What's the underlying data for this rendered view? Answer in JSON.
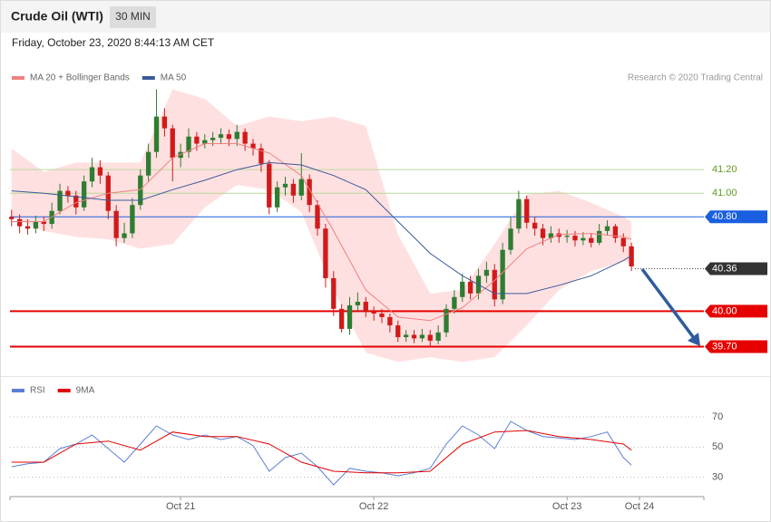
{
  "header": {
    "title": "Crude Oil (WTI)",
    "timeframe": "30 MIN",
    "datetime": "Friday, October 23, 2020 8:44:13 AM CET",
    "copyright": "Research © 2020 Trading Central"
  },
  "chart_data": [
    {
      "type": "candlestick",
      "xlim": [
        -21.2,
        65
      ],
      "ylim": [
        39.45,
        42.1
      ],
      "up_color": "#2e7d32",
      "down_color": "#d11a1a",
      "x": [
        -21,
        -20,
        -19,
        -18,
        -17,
        -16,
        -15,
        -14,
        -13,
        -12,
        -11,
        -10,
        -9,
        -8,
        -7,
        -6,
        -5,
        -4,
        -3,
        -2,
        -1,
        0,
        1,
        2,
        3,
        4,
        5,
        6,
        7,
        8,
        9,
        10,
        11,
        12,
        13,
        14,
        15,
        16,
        17,
        18,
        19,
        20,
        21,
        22,
        23,
        24,
        25,
        26,
        27,
        28,
        29,
        30,
        31,
        32,
        33,
        34,
        35,
        36,
        37,
        38,
        39,
        40,
        41,
        42,
        43,
        44,
        45,
        46,
        47,
        48,
        49,
        50,
        51,
        52,
        53,
        54,
        55,
        56
      ],
      "open": [
        40.8,
        40.78,
        40.72,
        40.7,
        40.76,
        40.74,
        40.85,
        41.02,
        40.98,
        40.88,
        41.1,
        41.22,
        41.15,
        40.85,
        40.62,
        40.66,
        40.9,
        41.15,
        41.35,
        41.65,
        41.55,
        41.3,
        41.35,
        41.48,
        41.42,
        41.45,
        41.47,
        41.5,
        41.46,
        41.52,
        41.42,
        41.38,
        41.25,
        40.88,
        41.05,
        41.08,
        40.98,
        41.12,
        40.9,
        40.7,
        40.28,
        40.02,
        39.85,
        40.05,
        40.08,
        40.0,
        39.98,
        39.95,
        39.88,
        39.78,
        39.8,
        39.77,
        39.8,
        39.75,
        39.82,
        40.02,
        40.12,
        40.25,
        40.15,
        40.3,
        40.35,
        40.1,
        40.52,
        40.7,
        40.95,
        40.75,
        40.7,
        40.62,
        40.66,
        40.63,
        40.64,
        40.6,
        40.62,
        40.58,
        40.68,
        40.72,
        40.62,
        40.55
      ],
      "high": [
        40.86,
        40.82,
        40.78,
        40.81,
        40.8,
        40.92,
        41.08,
        41.06,
        41.02,
        41.15,
        41.3,
        41.28,
        41.18,
        40.9,
        40.75,
        40.96,
        41.2,
        41.42,
        41.88,
        41.72,
        41.58,
        41.42,
        41.55,
        41.52,
        41.5,
        41.52,
        41.55,
        41.54,
        41.58,
        41.55,
        41.46,
        41.42,
        41.28,
        41.1,
        41.14,
        41.12,
        41.34,
        41.16,
        40.94,
        40.74,
        40.34,
        40.06,
        40.12,
        40.16,
        40.12,
        40.04,
        40.02,
        39.98,
        39.92,
        39.84,
        39.84,
        39.85,
        39.84,
        39.88,
        40.06,
        40.18,
        40.32,
        40.3,
        40.36,
        40.42,
        40.4,
        40.58,
        40.8,
        41.02,
        40.98,
        40.8,
        40.74,
        40.72,
        40.7,
        40.69,
        40.68,
        40.67,
        40.66,
        40.74,
        40.77,
        40.74,
        40.66,
        40.58
      ],
      "low": [
        40.72,
        40.66,
        40.65,
        40.66,
        40.68,
        40.7,
        40.82,
        40.92,
        40.82,
        40.85,
        41.05,
        41.08,
        40.78,
        40.55,
        40.58,
        40.62,
        40.86,
        41.1,
        41.3,
        41.48,
        41.1,
        41.22,
        41.3,
        41.36,
        41.38,
        41.4,
        41.42,
        41.4,
        41.4,
        41.36,
        41.32,
        41.18,
        40.82,
        40.84,
        40.98,
        40.92,
        40.94,
        40.84,
        40.64,
        40.2,
        39.96,
        39.82,
        39.8,
        40.0,
        39.95,
        39.92,
        39.9,
        39.82,
        39.74,
        39.74,
        39.73,
        39.74,
        39.7,
        39.72,
        39.78,
        39.98,
        40.08,
        40.1,
        40.1,
        40.24,
        40.04,
        40.06,
        40.48,
        40.66,
        40.7,
        40.64,
        40.56,
        40.58,
        40.58,
        40.58,
        40.55,
        40.56,
        40.54,
        40.56,
        40.64,
        40.58,
        40.5,
        40.34
      ],
      "close": [
        40.78,
        40.72,
        40.7,
        40.76,
        40.74,
        40.85,
        41.02,
        40.98,
        40.88,
        41.1,
        41.22,
        41.15,
        40.85,
        40.62,
        40.66,
        40.9,
        41.15,
        41.35,
        41.65,
        41.55,
        41.3,
        41.35,
        41.48,
        41.42,
        41.45,
        41.47,
        41.5,
        41.46,
        41.52,
        41.42,
        41.38,
        41.25,
        40.88,
        41.05,
        41.08,
        40.98,
        41.12,
        40.9,
        40.7,
        40.28,
        40.02,
        39.85,
        40.05,
        40.08,
        40.0,
        39.98,
        39.95,
        39.88,
        39.78,
        39.8,
        39.77,
        39.8,
        39.75,
        39.82,
        40.02,
        40.12,
        40.25,
        40.15,
        40.3,
        40.35,
        40.1,
        40.52,
        40.7,
        40.95,
        40.75,
        40.7,
        40.62,
        40.66,
        40.63,
        40.64,
        40.6,
        40.62,
        40.58,
        40.68,
        40.72,
        40.62,
        40.55,
        40.38
      ],
      "series": [
        {
          "name": "MA 20 + Bollinger Bands",
          "color": "#f08080",
          "band_color": "#ffe0e0",
          "x": [
            -21,
            -17,
            -13,
            -9,
            -5,
            -1,
            3,
            7,
            11,
            15,
            19,
            23,
            27,
            31,
            35,
            39,
            43,
            47,
            51,
            55,
            56
          ],
          "values": [
            40.76,
            40.76,
            40.92,
            41.0,
            41.03,
            41.3,
            41.42,
            41.42,
            41.34,
            41.15,
            40.68,
            40.18,
            39.95,
            39.92,
            40.03,
            40.26,
            40.53,
            40.65,
            40.66,
            40.63,
            40.61
          ],
          "upper": [
            41.38,
            41.18,
            41.26,
            41.26,
            41.26,
            41.88,
            41.8,
            41.57,
            41.65,
            41.61,
            41.65,
            41.57,
            40.65,
            40.15,
            40.18,
            40.57,
            40.99,
            41.02,
            40.92,
            40.8,
            40.76
          ],
          "lower": [
            40.8,
            40.68,
            40.63,
            40.61,
            40.53,
            40.57,
            40.88,
            41.07,
            41.03,
            40.84,
            40.18,
            39.65,
            39.57,
            39.61,
            39.57,
            39.61,
            39.88,
            40.18,
            40.34,
            40.42,
            40.42
          ]
        },
        {
          "name": "MA 50",
          "color": "#3a5a9a",
          "x": [
            -21,
            -17,
            -13,
            -9,
            -5,
            -1,
            3,
            7,
            11,
            15,
            19,
            23,
            27,
            31,
            35,
            39,
            43,
            47,
            51,
            55,
            56
          ],
          "values": [
            41.02,
            41.0,
            40.97,
            40.94,
            40.94,
            41.03,
            41.11,
            41.2,
            41.26,
            41.24,
            41.15,
            41.03,
            40.76,
            40.49,
            40.3,
            40.15,
            40.15,
            40.22,
            40.3,
            40.43,
            40.47
          ]
        }
      ],
      "levels": [
        {
          "value": 41.2,
          "label": "41.20",
          "color": "#b6d99b",
          "text_color": "#5e9a1e",
          "style": "thin"
        },
        {
          "value": 41.0,
          "label": "41.00",
          "color": "#b6d99b",
          "text_color": "#5e9a1e",
          "style": "thin"
        },
        {
          "value": 40.8,
          "label": "40.80",
          "color": "#1a5fe0",
          "style": "tag"
        },
        {
          "value": 40.36,
          "label": "40.36",
          "color": "#333333",
          "style": "current"
        },
        {
          "value": 40.0,
          "label": "40.00",
          "color": "#e60000",
          "style": "thick"
        },
        {
          "value": 39.7,
          "label": "39.70",
          "color": "#e60000",
          "style": "thick"
        }
      ]
    },
    {
      "type": "line",
      "xlim": [
        -21.2,
        65
      ],
      "ylim": [
        19,
        79
      ],
      "yticks": [
        30,
        50,
        70
      ],
      "grid": true,
      "xticks": [
        {
          "value": 0,
          "label": "Oct 21"
        },
        {
          "value": 24,
          "label": "Oct 22"
        },
        {
          "value": 48,
          "label": "Oct 23"
        },
        {
          "value": 57,
          "label": "Oct 24"
        }
      ],
      "series": [
        {
          "name": "RSI",
          "color": "#5b7fd6",
          "x": [
            -21,
            -19,
            -17,
            -15,
            -13,
            -11,
            -9,
            -7,
            -5,
            -3,
            -1,
            1,
            3,
            5,
            7,
            9,
            11,
            13,
            15,
            17,
            19,
            21,
            23,
            25,
            27,
            29,
            31,
            33,
            35,
            37,
            39,
            41,
            43,
            45,
            47,
            49,
            51,
            53,
            55,
            56
          ],
          "values": [
            37,
            39,
            40,
            49,
            52,
            58,
            49,
            40,
            52,
            64,
            58,
            55,
            58,
            55,
            57,
            51,
            34,
            43,
            46,
            37,
            25,
            36,
            34,
            33,
            31,
            33,
            36,
            52,
            64,
            58,
            49,
            67,
            61,
            57,
            56,
            55,
            57,
            60,
            43,
            38
          ]
        },
        {
          "name": "9MA",
          "color": "#e00000",
          "x": [
            -21,
            -17,
            -13,
            -9,
            -5,
            -1,
            3,
            7,
            11,
            15,
            19,
            23,
            27,
            31,
            35,
            39,
            43,
            47,
            51,
            55,
            56
          ],
          "values": [
            40,
            40,
            52,
            54,
            48,
            60,
            57,
            57,
            52,
            40,
            34,
            33,
            33,
            34,
            52,
            60,
            61,
            57,
            55,
            52,
            48
          ]
        }
      ]
    }
  ]
}
